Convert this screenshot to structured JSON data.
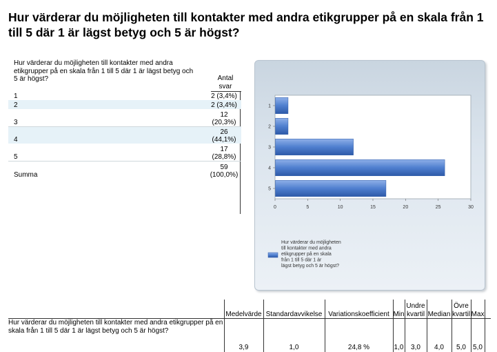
{
  "title": "Hur värderar du möjligheten till kontakter med andra etikgrupper på en skala från 1 till 5 där 1 är lägst betyg och 5 är högst?",
  "freq_table": {
    "question": "Hur värderar du möjligheten till kontakter med andra etikgrupper på en skala från 1 till 5 där 1 är lägst betyg och 5 är högst?",
    "count_header": "Antal svar",
    "rows": [
      {
        "label": "1",
        "count": "2 (3,4%)"
      },
      {
        "label": "2",
        "count": "2 (3,4%)"
      },
      {
        "label": "3",
        "count": "12 (20,3%)"
      },
      {
        "label": "4",
        "count": "26 (44,1%)"
      },
      {
        "label": "5",
        "count": "17 (28,8%)"
      },
      {
        "label": "Summa",
        "count": "59 (100,0%)"
      }
    ]
  },
  "chart_data": {
    "type": "bar",
    "orientation": "horizontal",
    "categories": [
      "1",
      "2",
      "3",
      "4",
      "5"
    ],
    "series": [
      {
        "name": "Hur värderar du möjligheten till kontakter med andra etikgrupper på en skala från 1 till 5 där 1 är lägst betyg och 5 är högst?",
        "values": [
          2,
          2,
          12,
          26,
          17
        ]
      }
    ],
    "xlim": [
      0,
      30
    ],
    "xticks": [
      "0",
      "5",
      "10",
      "15",
      "20",
      "25",
      "30"
    ],
    "legend_position": "bottom",
    "colors": {
      "bar": "#4f7fcf",
      "bar_light": "#8fb0e8",
      "bar_dark": "#2e5aa8"
    }
  },
  "stats": {
    "question": "Hur värderar du möjligheten till kontakter med andra etikgrupper på en skala från 1 till 5 där 1 är lägst betyg och 5 är högst?",
    "columns": [
      {
        "header": "Medelvärde",
        "value": "3,9"
      },
      {
        "header": "Standardavvikelse",
        "value": "1,0"
      },
      {
        "header": "Variationskoefficient",
        "value": "24,8 %"
      },
      {
        "header": "Min",
        "value": "1,0"
      },
      {
        "header": "Undre kvartil",
        "value": "3,0"
      },
      {
        "header": "Median",
        "value": "4,0"
      },
      {
        "header": "Övre kvartil",
        "value": "5,0"
      },
      {
        "header": "Max",
        "value": "5,0"
      }
    ]
  }
}
